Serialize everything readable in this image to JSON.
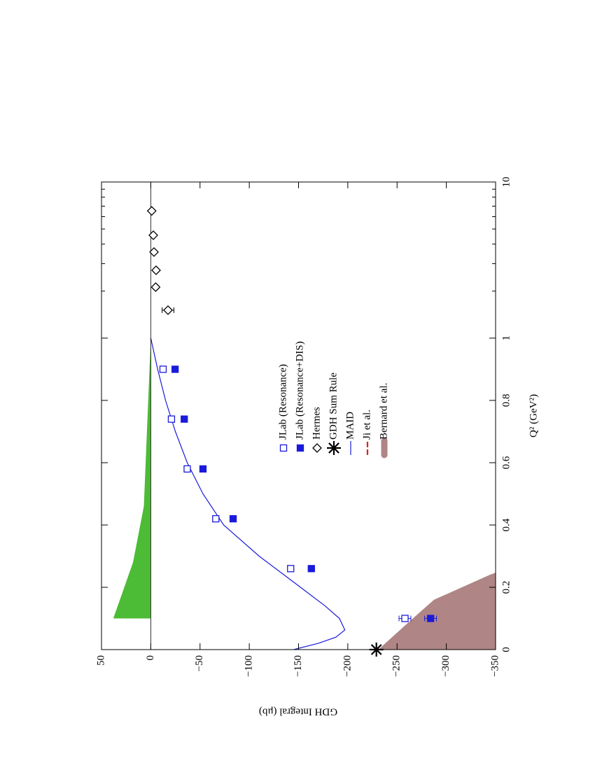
{
  "chart_data": {
    "type": "scatter",
    "x_label": "Q² (GeV²)",
    "y_label": "GDH Integral (μb)",
    "xlim": [
      0,
      10
    ],
    "xbreak": 1,
    "xscale": "linear-log",
    "xticks": [
      0,
      0.2,
      0.4,
      0.6,
      0.8,
      1,
      10
    ],
    "ylim": [
      -350,
      50
    ],
    "yticks": [
      50,
      0,
      {
        "value": -50,
        "label": "−50"
      },
      {
        "value": -100,
        "label": "−100"
      },
      {
        "value": -150,
        "label": "−150"
      },
      {
        "value": -200,
        "label": "−200"
      },
      {
        "value": -250,
        "label": "−250"
      },
      {
        "value": -300,
        "label": "−300"
      },
      {
        "value": -350,
        "label": "−350"
      }
    ],
    "zero_line": true,
    "bands": [
      {
        "color": "#4cbb35",
        "x": [
          0.1,
          0.28,
          0.46,
          1.0
        ],
        "upper": [
          38,
          18,
          7,
          0
        ],
        "lower": [
          0,
          0,
          0,
          0
        ]
      }
    ],
    "series": [
      {
        "name": "JLab (Resonance)",
        "style": "open-square",
        "color": "#1a1adb",
        "x": [
          0.1,
          0.26,
          0.42,
          0.58,
          0.74,
          0.9
        ],
        "values": [
          -258,
          -142,
          -66,
          -37,
          -21,
          -12.5
        ],
        "errors": [
          6,
          2,
          2,
          2,
          2,
          2
        ]
      },
      {
        "name": "JLab (Resonance+DIS)",
        "style": "filled-square",
        "color": "#1a1adb",
        "x": [
          0.1,
          0.26,
          0.42,
          0.58,
          0.74,
          0.9
        ],
        "values": [
          -284,
          -163,
          -83.6,
          -53,
          -34,
          -24.7
        ],
        "errors": [
          6,
          2,
          2,
          2,
          2,
          2
        ]
      },
      {
        "name": "Hermes",
        "style": "open-diamond",
        "color": "#000000",
        "x": [
          1.51,
          2.12,
          2.72,
          3.56,
          4.56,
          6.53
        ],
        "values": [
          -17.5,
          -5,
          -5.4,
          -3.3,
          -2.6,
          -1
        ],
        "errors": [
          6,
          2,
          2,
          1,
          1,
          1
        ]
      },
      {
        "name": "GDH Sum Rule",
        "style": "asterisk",
        "color": "#000000",
        "x": [
          0
        ],
        "values": [
          -229
        ]
      },
      {
        "name": "MAID",
        "style": "line",
        "color": "#1a1adb",
        "x": [
          0,
          0.02,
          0.04,
          0.063,
          0.1,
          0.14,
          0.2,
          0.3,
          0.4,
          0.5,
          0.6,
          0.7,
          0.8,
          0.9,
          1.0
        ],
        "values": [
          -145,
          -170,
          -188,
          -197,
          -191.5,
          -177,
          -152,
          -110,
          -74,
          -53,
          -37,
          -25,
          -15,
          -7,
          0
        ]
      },
      {
        "name": "Ji et al.",
        "style": "dashed",
        "color": "#e0201a",
        "x": [
          0,
          0.04
        ],
        "values": [
          -231,
          -350
        ]
      },
      {
        "name": "Bernard et al.",
        "style": "band",
        "color": "#b08585",
        "x": [
          0,
          0.1,
          0.16,
          0.24,
          0.247
        ],
        "upper": [
          -231,
          -266,
          -287.5,
          -344,
          -350
        ],
        "lower": [
          -350,
          -350,
          -350,
          -350,
          -350
        ]
      }
    ]
  }
}
